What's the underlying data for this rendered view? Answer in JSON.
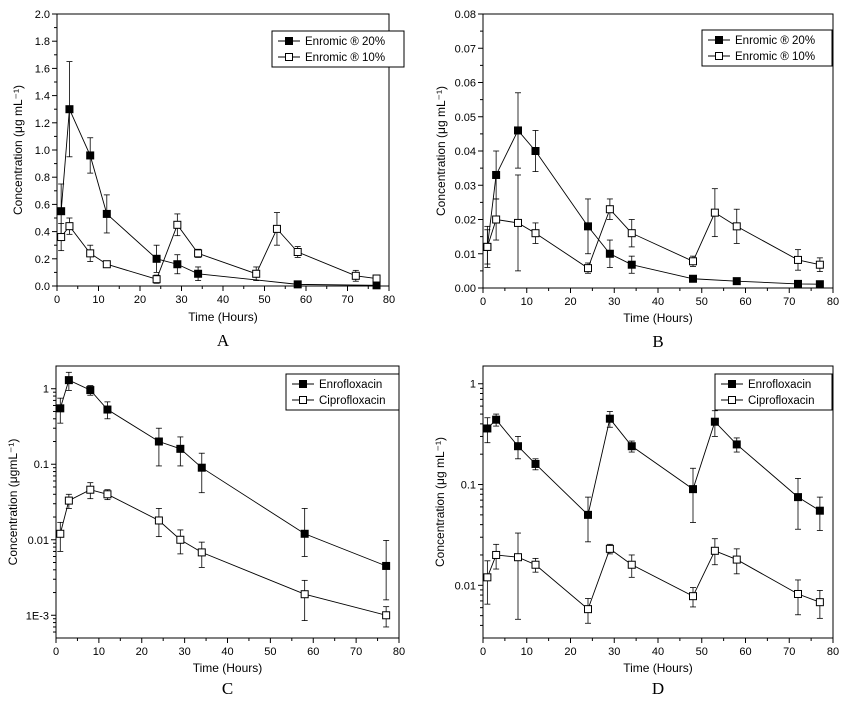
{
  "chart_data": [
    {
      "panel": "A",
      "type": "line",
      "xlabel": "Time (Hours)",
      "ylabel": "Concentration (μg mL⁻¹)",
      "scale": "linear",
      "xlim": [
        0,
        80
      ],
      "ylim": [
        0,
        2.0
      ],
      "xticks": [
        0,
        10,
        20,
        30,
        40,
        50,
        60,
        70,
        80
      ],
      "yticks": [
        0.0,
        0.2,
        0.4,
        0.6,
        0.8,
        1.0,
        1.2,
        1.4,
        1.6,
        1.8,
        2.0
      ],
      "ytick_labels": [
        "0.0",
        "0.2",
        "0.4",
        "0.6",
        "0.8",
        "1.0",
        "1.2",
        "1.4",
        "1.6",
        "1.8",
        "2.0"
      ],
      "legend_position": "top-right",
      "series": [
        {
          "name": "Enromic ® 20%",
          "marker": "filled-square",
          "x": [
            1,
            3,
            8,
            12,
            24,
            29,
            34,
            58,
            77
          ],
          "y": [
            0.55,
            1.3,
            0.96,
            0.53,
            0.2,
            0.16,
            0.09,
            0.012,
            0.005
          ],
          "err": [
            0.2,
            0.35,
            0.13,
            0.14,
            0.1,
            0.07,
            0.05,
            0.014,
            0.006
          ]
        },
        {
          "name": "Enromic ® 10%",
          "marker": "open-square",
          "x": [
            1,
            3,
            8,
            12,
            24,
            29,
            34,
            48,
            53,
            58,
            72,
            77
          ],
          "y": [
            0.36,
            0.44,
            0.24,
            0.16,
            0.05,
            0.45,
            0.24,
            0.09,
            0.42,
            0.25,
            0.075,
            0.055
          ],
          "err": [
            0.1,
            0.06,
            0.06,
            0.02,
            0.03,
            0.08,
            0.03,
            0.05,
            0.12,
            0.04,
            0.04,
            0.02
          ]
        }
      ]
    },
    {
      "panel": "B",
      "type": "line",
      "xlabel": "Time (Hours)",
      "ylabel": "Concentration (μg mL⁻¹)",
      "scale": "linear",
      "xlim": [
        0,
        80
      ],
      "ylim": [
        0,
        0.08
      ],
      "xticks": [
        0,
        10,
        20,
        30,
        40,
        50,
        60,
        70,
        80
      ],
      "yticks": [
        0.0,
        0.01,
        0.02,
        0.03,
        0.04,
        0.05,
        0.06,
        0.07,
        0.08
      ],
      "ytick_labels": [
        "0.00",
        "0.01",
        "0.02",
        "0.03",
        "0.04",
        "0.05",
        "0.06",
        "0.07",
        "0.08"
      ],
      "legend_position": "top-right",
      "series": [
        {
          "name": "Enromic ® 20%",
          "marker": "filled-square",
          "x": [
            1,
            3,
            8,
            12,
            24,
            29,
            34,
            48,
            58,
            72,
            77
          ],
          "y": [
            0.012,
            0.033,
            0.046,
            0.04,
            0.018,
            0.01,
            0.0068,
            0.0027,
            0.002,
            0.0012,
            0.0011
          ],
          "err": [
            0.006,
            0.007,
            0.011,
            0.006,
            0.008,
            0.004,
            0.0025,
            0.0005,
            0.0005,
            0.0004,
            0.0004
          ]
        },
        {
          "name": "Enromic ® 10%",
          "marker": "open-square",
          "x": [
            1,
            3,
            8,
            12,
            24,
            29,
            34,
            48,
            53,
            58,
            72,
            77
          ],
          "y": [
            0.012,
            0.02,
            0.019,
            0.016,
            0.0058,
            0.023,
            0.016,
            0.0078,
            0.022,
            0.018,
            0.0082,
            0.0068
          ],
          "err": [
            0.005,
            0.006,
            0.014,
            0.003,
            0.0015,
            0.003,
            0.004,
            0.0015,
            0.007,
            0.005,
            0.003,
            0.002
          ]
        }
      ]
    },
    {
      "panel": "C",
      "type": "line",
      "xlabel": "Time (Hours)",
      "ylabel": "Concentration (μgmL⁻¹)",
      "scale": "log",
      "xlim": [
        0,
        80
      ],
      "ylim": [
        0.0005,
        2
      ],
      "xticks": [
        0,
        10,
        20,
        30,
        40,
        50,
        60,
        70,
        80
      ],
      "yticks": [
        0.001,
        0.01,
        0.1,
        1
      ],
      "ytick_labels": [
        "1E-3",
        "0.01",
        "0.1",
        "1"
      ],
      "legend_position": "top-right",
      "series": [
        {
          "name": "Enrofloxacin",
          "marker": "filled-square",
          "x": [
            1,
            3,
            8,
            12,
            24,
            29,
            34,
            58,
            77
          ],
          "y": [
            0.55,
            1.3,
            0.96,
            0.53,
            0.2,
            0.16,
            0.09,
            0.012,
            0.0045
          ],
          "err_low": [
            0.35,
            0.95,
            0.82,
            0.4,
            0.095,
            0.095,
            0.042,
            0.006,
            0.0016
          ],
          "err_high": [
            0.75,
            1.65,
            1.1,
            0.67,
            0.3,
            0.23,
            0.14,
            0.026,
            0.0098
          ]
        },
        {
          "name": "Ciprofloxacin",
          "marker": "open-square",
          "x": [
            1,
            3,
            8,
            12,
            24,
            29,
            34,
            58,
            77
          ],
          "y": [
            0.012,
            0.033,
            0.046,
            0.04,
            0.018,
            0.01,
            0.0068,
            0.0019,
            0.001
          ],
          "err_low": [
            0.007,
            0.026,
            0.035,
            0.034,
            0.011,
            0.0065,
            0.0043,
            0.00085,
            0.0007
          ],
          "err_high": [
            0.017,
            0.04,
            0.057,
            0.046,
            0.026,
            0.0135,
            0.0093,
            0.0029,
            0.0013
          ]
        }
      ]
    },
    {
      "panel": "D",
      "type": "line",
      "xlabel": "Time (Hours)",
      "ylabel": "Concentration (μg mL⁻¹)",
      "scale": "log",
      "xlim": [
        0,
        80
      ],
      "ylim": [
        0.003,
        1.5
      ],
      "xticks": [
        0,
        10,
        20,
        30,
        40,
        50,
        60,
        70,
        80
      ],
      "yticks": [
        0.01,
        0.1,
        1
      ],
      "ytick_labels": [
        "0.01",
        "0.1",
        "1"
      ],
      "legend_position": "top-right",
      "series": [
        {
          "name": "Enrofloxacin",
          "marker": "filled-square",
          "x": [
            1,
            3,
            8,
            12,
            24,
            29,
            34,
            48,
            53,
            58,
            72,
            77
          ],
          "y": [
            0.36,
            0.44,
            0.24,
            0.16,
            0.05,
            0.45,
            0.24,
            0.09,
            0.42,
            0.25,
            0.075,
            0.055
          ],
          "err_low": [
            0.26,
            0.38,
            0.18,
            0.14,
            0.027,
            0.37,
            0.21,
            0.042,
            0.3,
            0.21,
            0.036,
            0.035
          ],
          "err_high": [
            0.46,
            0.5,
            0.3,
            0.18,
            0.075,
            0.53,
            0.27,
            0.145,
            0.54,
            0.29,
            0.115,
            0.075
          ]
        },
        {
          "name": "Ciprofloxacin",
          "marker": "open-square",
          "x": [
            1,
            3,
            8,
            12,
            24,
            29,
            34,
            48,
            53,
            58,
            72,
            77
          ],
          "y": [
            0.012,
            0.02,
            0.019,
            0.016,
            0.0058,
            0.023,
            0.016,
            0.0078,
            0.022,
            0.018,
            0.0082,
            0.0068
          ],
          "err_low": [
            0.0065,
            0.0145,
            0.0046,
            0.0135,
            0.0042,
            0.0205,
            0.012,
            0.0061,
            0.016,
            0.013,
            0.0051,
            0.0047
          ],
          "err_high": [
            0.0175,
            0.0255,
            0.033,
            0.0185,
            0.0074,
            0.0255,
            0.02,
            0.0095,
            0.029,
            0.023,
            0.0113,
            0.0089
          ]
        }
      ]
    }
  ]
}
